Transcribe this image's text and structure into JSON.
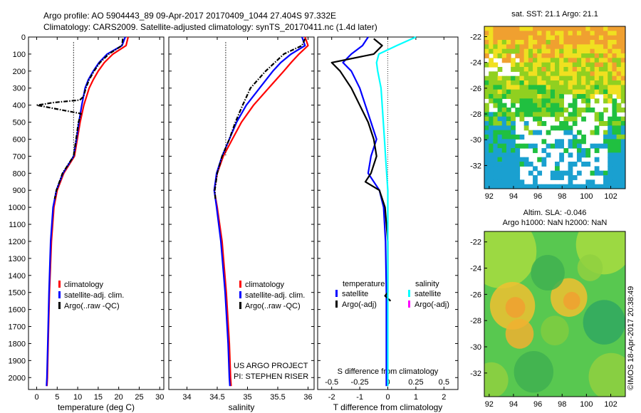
{
  "header": {
    "line1": "Argo profile: AO 5904443_89 09-Apr-2017 20170409_1044 27.404S 97.332E",
    "line2": "Climatology: CARS2009. Satellite-adjusted climatology: synTS_20170411.nc (1.4d later)"
  },
  "colors": {
    "climatology": "#ff0000",
    "satellite": "#0000ff",
    "argo": "#000000",
    "sal_satellite": "#00ffff",
    "sal_argo": "#ff00ff"
  },
  "chart_data": [
    {
      "type": "line",
      "id": "temperature",
      "xlabel": "temperature (deg C)",
      "ylabel": "",
      "xlim": [
        -2,
        31
      ],
      "ylim": [
        2070,
        0
      ],
      "xticks": [
        0,
        5,
        10,
        15,
        20,
        25,
        30
      ],
      "yticks": [
        0,
        100,
        200,
        300,
        400,
        500,
        600,
        700,
        800,
        900,
        1000,
        1100,
        1200,
        1300,
        1400,
        1500,
        1600,
        1700,
        1800,
        1900,
        2000
      ],
      "legend": {
        "position": "lower-middle",
        "entries": [
          "climatology",
          "satellite-adj. clim.",
          "Argo(..raw -QC)"
        ]
      },
      "series": [
        {
          "name": "climatology",
          "style": "solid",
          "depth": [
            0,
            50,
            100,
            150,
            200,
            250,
            300,
            400,
            500,
            600,
            700,
            800,
            900,
            1000,
            1200,
            1500,
            1800,
            2000,
            2050
          ],
          "values": [
            22.3,
            21.8,
            18.6,
            16.5,
            15.0,
            13.8,
            12.8,
            11.5,
            10.6,
            9.9,
            9.2,
            6.6,
            5.0,
            4.2,
            3.6,
            3.1,
            2.8,
            2.6,
            2.5
          ]
        },
        {
          "name": "satellite-adj. clim.",
          "style": "solid",
          "depth": [
            0,
            50,
            100,
            150,
            200,
            250,
            300,
            400,
            500,
            600,
            700,
            800,
            900,
            1000,
            1200,
            1500,
            1800,
            2000,
            2050
          ],
          "values": [
            21.6,
            20.8,
            17.2,
            15.2,
            13.8,
            12.6,
            11.8,
            11.0,
            10.3,
            9.7,
            9.0,
            6.4,
            4.8,
            4.0,
            3.4,
            3.0,
            2.7,
            2.5,
            2.4
          ]
        },
        {
          "name": "Argo(..raw -QC)",
          "style": "dashdot",
          "depth": [
            10,
            50,
            100,
            150,
            200,
            250,
            300,
            350,
            370,
            385,
            395,
            400,
            450,
            500,
            600,
            700,
            800,
            900,
            950
          ],
          "values": [
            21.0,
            20.8,
            17.6,
            15.4,
            14.0,
            12.8,
            12.0,
            11.4,
            10.5,
            4.0,
            1.5,
            0.0,
            10.8,
            10.2,
            9.6,
            9.0,
            6.3,
            4.8,
            4.4
          ]
        },
        {
          "name": "",
          "style": "dotted",
          "depth": [
            30,
            700
          ],
          "values": [
            9.0,
            9.0
          ]
        }
      ]
    },
    {
      "type": "line",
      "id": "salinity",
      "xlabel": "salinity",
      "ylabel": "",
      "xlim": [
        33.7,
        36.1
      ],
      "ylim": [
        2070,
        0
      ],
      "xticks": [
        34,
        34.5,
        35,
        35.5,
        36
      ],
      "xticklabels": [
        "34",
        "34.5",
        "35",
        "35.5",
        "36"
      ],
      "legend": {
        "position": "lower-middle",
        "entries": [
          "climatology",
          "satellite-adj. clim.",
          "Argo(..raw -QC)"
        ]
      },
      "annotation": [
        "US ARGO PROJECT",
        "PI: STEPHEN RISER"
      ],
      "series": [
        {
          "name": "climatology",
          "style": "solid",
          "depth": [
            0,
            50,
            100,
            150,
            200,
            300,
            400,
            500,
            600,
            700,
            800,
            900,
            1000,
            1200,
            1500,
            1800,
            2000,
            2050
          ],
          "values": [
            35.95,
            36.0,
            35.85,
            35.72,
            35.6,
            35.35,
            35.1,
            34.9,
            34.75,
            34.6,
            34.5,
            34.45,
            34.5,
            34.58,
            34.65,
            34.7,
            34.72,
            34.73
          ]
        },
        {
          "name": "satellite-adj. clim.",
          "style": "solid",
          "depth": [
            0,
            50,
            100,
            150,
            200,
            300,
            400,
            500,
            600,
            700,
            800,
            900,
            1000,
            1200,
            1500,
            1800,
            2000,
            2050
          ],
          "values": [
            35.9,
            35.95,
            35.72,
            35.55,
            35.42,
            35.2,
            34.98,
            34.82,
            34.7,
            34.58,
            34.49,
            34.45,
            34.49,
            34.56,
            34.63,
            34.68,
            34.7,
            34.71
          ]
        },
        {
          "name": "Argo(..raw -QC)",
          "style": "dashdot",
          "depth": [
            10,
            50,
            100,
            150,
            200,
            300,
            400,
            500,
            600,
            700,
            800,
            900,
            950
          ],
          "values": [
            35.95,
            35.9,
            35.6,
            35.45,
            35.3,
            35.05,
            34.92,
            34.8,
            34.7,
            34.58,
            34.5,
            34.46,
            34.47
          ]
        },
        {
          "name": "",
          "style": "dotted",
          "depth": [
            30,
            700
          ],
          "values": [
            34.64,
            34.64
          ]
        }
      ]
    },
    {
      "type": "line",
      "id": "difference",
      "xlabel": "T difference from climatology",
      "top_label": "S difference from climatology",
      "xlim": [
        -2.5,
        2.5
      ],
      "top_xlim": [
        -0.625,
        0.625
      ],
      "ylim": [
        2070,
        0
      ],
      "xticks": [
        -2,
        -1,
        0,
        1,
        2
      ],
      "top_xticks": [
        -0.5,
        -0.25,
        0,
        0.25,
        0.5
      ],
      "top_xticklabels": [
        "-0.5",
        "-0.25",
        "0",
        "0.25",
        "0.5"
      ],
      "legend": {
        "position": "lower-middle",
        "temperature_header": "temperature",
        "salinity_header": "salinity",
        "entries": [
          "satellite",
          "Argo(-adj)",
          "satellite",
          "Argo(-adj)"
        ]
      },
      "series": [
        {
          "name": "satellite",
          "group": "temperature",
          "axis": "T",
          "depth": [
            0,
            50,
            100,
            150,
            200,
            300,
            400,
            500,
            600,
            700,
            800,
            900,
            1000,
            1200,
            1500,
            2050
          ],
          "values": [
            -0.7,
            -0.9,
            -1.3,
            -1.6,
            -1.3,
            -1.0,
            -0.8,
            -0.6,
            -0.4,
            -0.6,
            -0.7,
            -0.3,
            -0.15,
            -0.08,
            -0.05,
            -0.05
          ]
        },
        {
          "name": "Argo(-adj)",
          "group": "temperature",
          "axis": "T",
          "depth": [
            10,
            50,
            100,
            150,
            200,
            300,
            400,
            500,
            600,
            700,
            800,
            850,
            900,
            1000,
            1200,
            1500,
            1520,
            1550
          ],
          "values": [
            -0.5,
            -0.2,
            -0.5,
            -2.0,
            -1.7,
            -1.3,
            -1.0,
            -0.7,
            -0.5,
            -0.4,
            -0.6,
            -0.8,
            -0.3,
            -0.1,
            0.0,
            0.0,
            -0.1,
            0.1
          ]
        },
        {
          "name": "satellite",
          "group": "salinity",
          "axis": "S",
          "depth": [
            0,
            50,
            100,
            150,
            200,
            300,
            400,
            500,
            600,
            700,
            800,
            900,
            1000,
            1200,
            1500,
            2050
          ],
          "values": [
            0.25,
            0.08,
            -0.08,
            -0.1,
            -0.09,
            -0.06,
            -0.05,
            -0.04,
            -0.03,
            -0.02,
            -0.01,
            0.0,
            0.0,
            0.0,
            0.0,
            0.0
          ]
        }
      ]
    },
    {
      "type": "heatmap",
      "id": "sst-map",
      "title": "sat. SST: 21.1  Argo: 21.1",
      "xlim": [
        91.6,
        103.2
      ],
      "ylim": [
        -33.8,
        -21.2
      ],
      "xticks": [
        92,
        94,
        96,
        98,
        100,
        102
      ],
      "yticks": [
        -22,
        -24,
        -26,
        -28,
        -30,
        -32
      ],
      "yticklabels": [
        "-22",
        "-24",
        "-26",
        "-28",
        "-30",
        "-32"
      ]
    },
    {
      "type": "heatmap",
      "id": "sla-map",
      "title": "Altim. SLA: -0.046",
      "subtitle": "Argo h1000: NaN  h2000: NaN",
      "xlim": [
        91.6,
        103.2
      ],
      "ylim": [
        -33.8,
        -21.2
      ],
      "xticks": [
        92,
        94,
        96,
        98,
        100,
        102
      ],
      "yticks": [
        -22,
        -24,
        -26,
        -28,
        -30,
        -32
      ],
      "yticklabels": [
        "-22",
        "-24",
        "-26",
        "-28",
        "-30",
        "-32"
      ]
    }
  ],
  "credit": "©IMOS 18-Apr-2017 20:38:49"
}
